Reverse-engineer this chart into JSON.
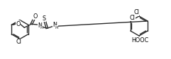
{
  "line_color": "#2a2a2a",
  "line_width": 1.0,
  "font_size": 5.8,
  "figsize": [
    2.41,
    0.84
  ],
  "dpi": 100,
  "xlim": [
    0,
    241
  ],
  "ylim": [
    0,
    84
  ]
}
